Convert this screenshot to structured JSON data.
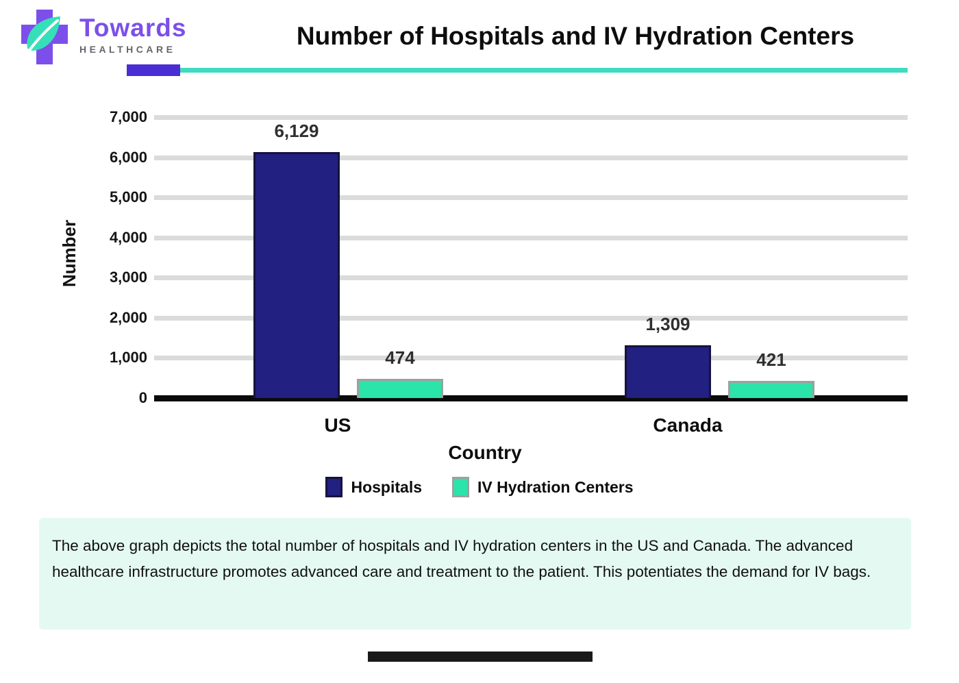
{
  "logo": {
    "brand": "Towards",
    "subtitle": "HEALTHCARE"
  },
  "header": {
    "title": "Number of Hospitals and IV Hydration Centers"
  },
  "chart_data": {
    "type": "bar",
    "title": "Number of Hospitals and IV Hydration Centers",
    "categories": [
      "US",
      "Canada"
    ],
    "series": [
      {
        "name": "Hospitals",
        "color": "#222081",
        "border_color": "#15143E",
        "values": [
          6129,
          1309
        ],
        "value_labels": [
          "6,129",
          "1,309"
        ]
      },
      {
        "name": "IV Hydration Centers",
        "color": "#2BE4A9",
        "border_color": "#9EA0A0",
        "values": [
          474,
          421
        ],
        "value_labels": [
          "474",
          "421"
        ]
      }
    ],
    "xlabel": "Country",
    "ylabel": "Number",
    "ylim": [
      0,
      7000
    ],
    "ytick_values": [
      0,
      1000,
      2000,
      3000,
      4000,
      5000,
      6000,
      7000
    ],
    "ytick_labels": [
      "0",
      "1,000",
      "2,000",
      "3,000",
      "4,000",
      "5,000",
      "6,000",
      "7,000"
    ],
    "grid": true,
    "legend_position": "bottom"
  },
  "description": {
    "text": "The above graph depicts the total number of hospitals and IV hydration centers in the US and Canada. The advanced healthcare infrastructure promotes advanced care and treatment to the patient. This potentiates the demand for IV bags."
  },
  "colors": {
    "accent_indigo": "#4B2ED3",
    "accent_teal": "#3FDCC2",
    "hospitals_bar": "#222081",
    "iv_centers_bar": "#2BE4A9",
    "description_bg": "#E4F9F2"
  }
}
